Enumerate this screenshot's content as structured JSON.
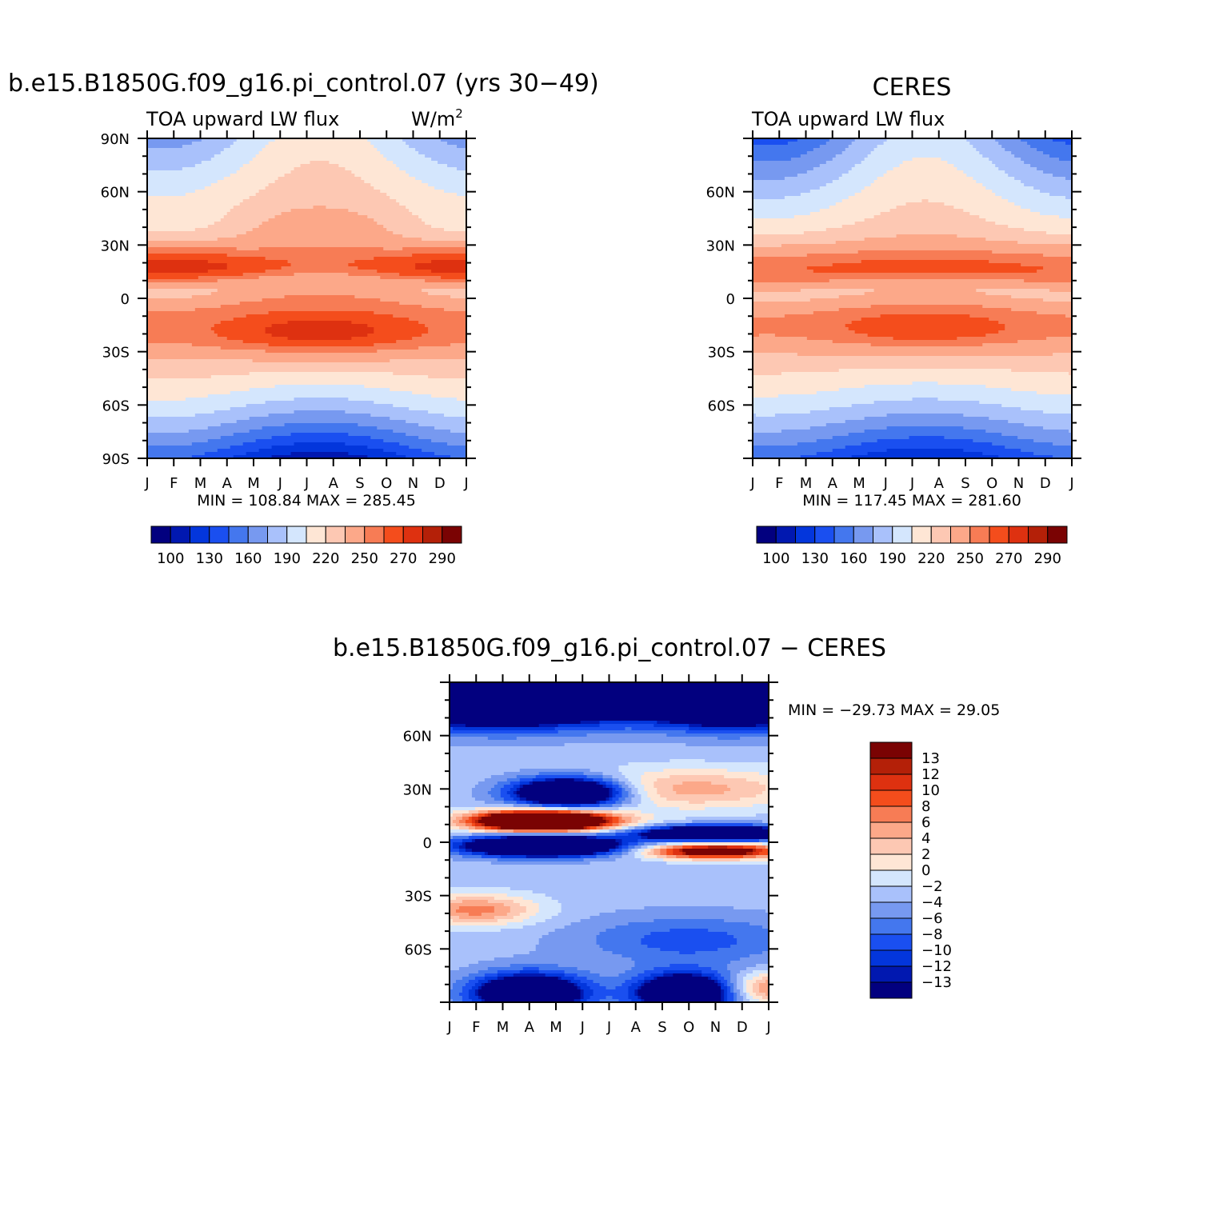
{
  "months": [
    "J",
    "F",
    "M",
    "A",
    "M",
    "J",
    "J",
    "A",
    "S",
    "O",
    "N",
    "D",
    "J"
  ],
  "chart_data": [
    {
      "type": "heatmap",
      "title": "b.e15.B1850G.f09_g16.pi_control.07 (yrs 30−49)",
      "left_string": "TOA upward LW flux",
      "right_string": "W/m",
      "right_string_sup": "2",
      "lat_ticks": [
        "90N",
        "60N",
        "30N",
        "0",
        "30S",
        "60S",
        "90S"
      ],
      "stats": "MIN =  108.84  MAX =  285.45",
      "min": 108.84,
      "max": 285.45,
      "colorbar_labels": [
        "100",
        "130",
        "160",
        "190",
        "220",
        "250",
        "270",
        "290"
      ],
      "contour_levels": [
        100,
        115,
        130,
        145,
        160,
        175,
        190,
        205,
        220,
        235,
        250,
        260,
        270,
        280,
        290
      ]
    },
    {
      "type": "heatmap",
      "title": "CERES",
      "left_string": "TOA upward LW flux",
      "lat_ticks": [
        "60N",
        "30N",
        "0",
        "30S",
        "60S"
      ],
      "stats": "MIN =  117.45  MAX =  281.60",
      "min": 117.45,
      "max": 281.6,
      "colorbar_labels": [
        "100",
        "130",
        "160",
        "190",
        "220",
        "250",
        "270",
        "290"
      ],
      "contour_levels": [
        100,
        115,
        130,
        145,
        160,
        175,
        190,
        205,
        220,
        235,
        250,
        260,
        270,
        280,
        290
      ]
    },
    {
      "type": "heatmap",
      "title": "b.e15.B1850G.f09_g16.pi_control.07  −  CERES",
      "lat_ticks": [
        "60N",
        "30N",
        "0",
        "30S",
        "60S"
      ],
      "stats": "MIN =  −29.73  MAX =    29.05",
      "min": -29.73,
      "max": 29.05,
      "colorbar_labels": [
        "13",
        "12",
        "10",
        "8",
        "6",
        "4",
        "2",
        "0",
        "−2",
        "−4",
        "−6",
        "−8",
        "−10",
        "−12",
        "−13"
      ],
      "contour_levels": [
        -13,
        -12,
        -10,
        -8,
        -6,
        -4,
        -2,
        0,
        2,
        4,
        6,
        8,
        10,
        12,
        13
      ]
    }
  ],
  "colors": {
    "abs_palette": [
      "#02007f",
      "#0118b0",
      "#0336dc",
      "#1a4ff0",
      "#4477ee",
      "#7799f0",
      "#a9c1fb",
      "#d4e6fd",
      "#fee6d5",
      "#fdc8b3",
      "#fca889",
      "#f77c55",
      "#f44d1c",
      "#de3110",
      "#b42008",
      "#7a0303"
    ],
    "diff_palette": [
      "#02007f",
      "#0118b0",
      "#0336dc",
      "#1a4ff0",
      "#4477ee",
      "#7799f0",
      "#a9c1fb",
      "#d4e6fd",
      "#fee6d5",
      "#fdc8b3",
      "#fca889",
      "#f77c55",
      "#f44d1c",
      "#de3110",
      "#b42008",
      "#7a0303"
    ]
  }
}
